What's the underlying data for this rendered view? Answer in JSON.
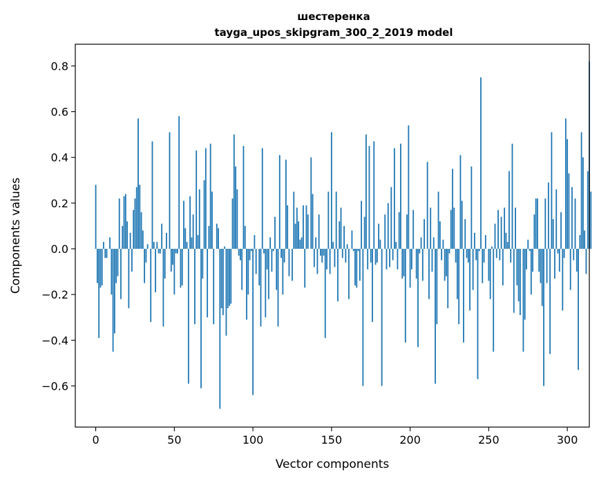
{
  "chart_data": {
    "type": "bar",
    "title_line1": "шестеренка",
    "title_line2": "tayga_upos_skipgram_300_2_2019 model",
    "xlabel": "Vector components",
    "ylabel": "Components values",
    "xlim": [
      -13,
      314
    ],
    "ylim": [
      -0.78,
      0.895
    ],
    "xticks": [
      0,
      50,
      100,
      150,
      200,
      250,
      300
    ],
    "xtick_labels": [
      "0",
      "50",
      "100",
      "150",
      "200",
      "250",
      "300"
    ],
    "yticks": [
      -0.6,
      -0.4,
      -0.2,
      0.0,
      0.2,
      0.4,
      0.6,
      0.8
    ],
    "ytick_labels": [
      "−0.6",
      "−0.4",
      "−0.2",
      "0.0",
      "0.2",
      "0.4",
      "0.6",
      "0.8"
    ],
    "bar_color": "#1f77b4",
    "values": [
      0.28,
      -0.15,
      -0.39,
      -0.17,
      -0.16,
      0.03,
      -0.04,
      -0.04,
      0.0,
      0.05,
      -0.2,
      -0.45,
      -0.37,
      -0.15,
      -0.12,
      0.22,
      -0.22,
      0.1,
      0.23,
      0.24,
      0.12,
      -0.26,
      0.07,
      -0.1,
      0.17,
      0.22,
      0.27,
      0.57,
      0.28,
      0.16,
      0.08,
      -0.15,
      -0.06,
      0.02,
      0.0,
      -0.32,
      0.47,
      0.03,
      -0.19,
      0.03,
      -0.02,
      -0.02,
      0.11,
      -0.34,
      -0.13,
      0.07,
      0.0,
      0.51,
      -0.1,
      -0.07,
      -0.2,
      -0.02,
      -0.02,
      0.58,
      -0.17,
      -0.16,
      0.21,
      0.09,
      0.03,
      -0.59,
      0.23,
      0.05,
      0.15,
      -0.33,
      0.43,
      0.06,
      0.26,
      -0.61,
      -0.13,
      0.3,
      0.44,
      -0.3,
      0.1,
      0.46,
      0.25,
      -0.33,
      0.0,
      0.11,
      0.09,
      -0.7,
      -0.26,
      -0.29,
      0.01,
      -0.38,
      -0.26,
      -0.25,
      -0.24,
      0.22,
      0.5,
      0.36,
      0.26,
      -0.03,
      -0.05,
      -0.18,
      0.45,
      0.1,
      -0.31,
      -0.2,
      -0.05,
      -0.01,
      -0.64,
      0.06,
      -0.11,
      0.0,
      -0.16,
      -0.34,
      0.44,
      -0.02,
      -0.3,
      -0.09,
      -0.22,
      0.05,
      -0.1,
      -0.01,
      0.14,
      -0.18,
      -0.34,
      0.41,
      -0.04,
      -0.2,
      -0.06,
      0.39,
      0.19,
      -0.12,
      0.0,
      -0.14,
      0.25,
      0.11,
      0.18,
      0.12,
      0.04,
      0.05,
      0.19,
      -0.17,
      0.19,
      0.15,
      0.0,
      0.4,
      0.24,
      -0.08,
      0.05,
      -0.11,
      0.15,
      -0.03,
      -0.06,
      -0.03,
      -0.39,
      -0.09,
      0.25,
      -0.11,
      0.51,
      0.03,
      -0.08,
      0.25,
      -0.23,
      0.12,
      0.18,
      -0.04,
      0.1,
      -0.06,
      0.02,
      -0.22,
      0.0,
      0.08,
      -0.01,
      -0.16,
      -0.17,
      -0.01,
      -0.14,
      0.21,
      -0.6,
      0.14,
      0.5,
      -0.09,
      0.45,
      -0.06,
      -0.32,
      0.47,
      -0.07,
      -0.06,
      0.11,
      0.04,
      -0.6,
      0.0,
      0.15,
      -0.09,
      0.2,
      -0.08,
      0.27,
      -0.05,
      0.44,
      0.03,
      -0.09,
      0.16,
      0.46,
      -0.13,
      -0.12,
      -0.41,
      0.15,
      0.54,
      -0.17,
      -0.09,
      0.17,
      0.0,
      -0.13,
      -0.43,
      -0.02,
      0.05,
      -0.14,
      0.13,
      0.0,
      0.38,
      -0.22,
      0.18,
      -0.1,
      0.05,
      -0.59,
      -0.33,
      0.25,
      0.12,
      -0.05,
      0.04,
      -0.14,
      -0.12,
      -0.26,
      -0.02,
      0.17,
      0.35,
      0.18,
      -0.06,
      -0.22,
      -0.33,
      0.41,
      0.21,
      -0.41,
      0.13,
      -0.04,
      -0.06,
      -0.27,
      0.36,
      -0.18,
      0.07,
      -0.05,
      -0.57,
      -0.01,
      0.75,
      -0.15,
      -0.06,
      0.06,
      0.0,
      -0.14,
      -0.22,
      0.01,
      -0.45,
      0.11,
      -0.04,
      0.17,
      -0.05,
      0.14,
      -0.16,
      0.18,
      0.07,
      0.03,
      0.34,
      -0.06,
      0.46,
      -0.28,
      0.18,
      -0.16,
      -0.23,
      -0.29,
      0.0,
      -0.45,
      -0.31,
      -0.09,
      0.04,
      -0.01,
      -0.2,
      -0.1,
      0.15,
      0.22,
      0.22,
      -0.1,
      -0.15,
      -0.25,
      -0.6,
      0.22,
      -0.15,
      0.29,
      -0.46,
      0.51,
      0.13,
      -0.13,
      0.26,
      -0.02,
      -0.1,
      0.16,
      -0.27,
      -0.04,
      0.57,
      0.48,
      0.33,
      -0.18,
      0.27,
      -0.05,
      0.22,
      -0.1,
      -0.53,
      0.06,
      0.51,
      0.4,
      0.08,
      -0.11,
      0.34,
      0.82,
      0.25
    ]
  }
}
